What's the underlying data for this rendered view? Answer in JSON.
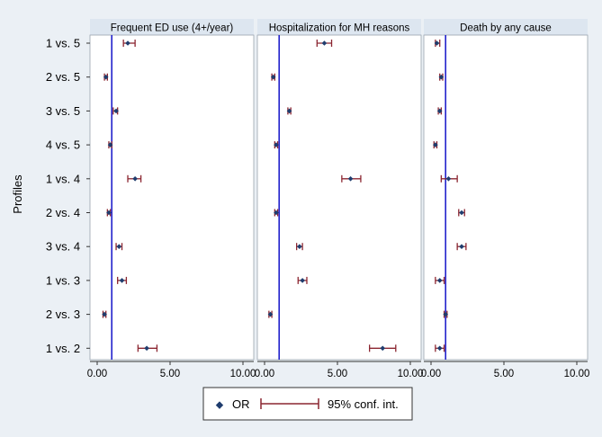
{
  "chart_data": {
    "type": "forest",
    "ylabel": "Profiles",
    "comparisons": [
      "1 vs. 5",
      "2 vs. 5",
      "3 vs. 5",
      "4 vs. 5",
      "1 vs. 4",
      "2 vs. 4",
      "3 vs. 4",
      "1 vs. 3",
      "2 vs. 3",
      "1 vs. 2"
    ],
    "xlim": [
      0,
      10
    ],
    "xticks": [
      0,
      5,
      10
    ],
    "xtick_labels": [
      "0.00",
      "5.00",
      "10.00"
    ],
    "reference_line": 1,
    "grid": false,
    "legend_placement": "bottom-center",
    "legend": {
      "or_label": "OR",
      "ci_label": "95% conf. int."
    },
    "colors": {
      "marker": "#1f3d6e",
      "ci": "#8b2631",
      "reference": "#2222cc",
      "panel_bg": "#ffffff",
      "header_bg": "#dde6f0",
      "page_bg": "#ebf0f5"
    },
    "panels": [
      {
        "title": "Frequent ED use (4+/year)",
        "or": [
          2.1,
          0.6,
          1.3,
          0.9,
          2.6,
          0.8,
          1.5,
          1.7,
          0.5,
          3.4
        ],
        "lo": [
          1.8,
          0.5,
          1.1,
          0.8,
          2.1,
          0.7,
          1.3,
          1.4,
          0.4,
          2.8
        ],
        "hi": [
          2.6,
          0.7,
          1.4,
          1.0,
          3.0,
          0.9,
          1.7,
          2.0,
          0.6,
          4.1
        ]
      },
      {
        "title": "Hospitalization for MH reasons",
        "or": [
          4.1,
          0.6,
          1.7,
          0.8,
          5.9,
          0.8,
          2.4,
          2.6,
          0.4,
          8.1
        ],
        "lo": [
          3.6,
          0.5,
          1.6,
          0.7,
          5.3,
          0.7,
          2.2,
          2.3,
          0.3,
          7.2
        ],
        "hi": [
          4.6,
          0.7,
          1.8,
          0.9,
          6.6,
          0.9,
          2.6,
          2.9,
          0.5,
          9.0
        ]
      },
      {
        "title": "Death by any cause",
        "or": [
          0.4,
          0.7,
          0.6,
          0.3,
          1.2,
          2.1,
          2.1,
          0.6,
          1.0,
          0.6
        ],
        "lo": [
          0.3,
          0.6,
          0.5,
          0.2,
          0.7,
          1.9,
          1.8,
          0.3,
          0.9,
          0.3
        ],
        "hi": [
          0.6,
          0.8,
          0.7,
          0.4,
          1.8,
          2.3,
          2.4,
          0.9,
          1.1,
          0.9
        ]
      }
    ]
  }
}
